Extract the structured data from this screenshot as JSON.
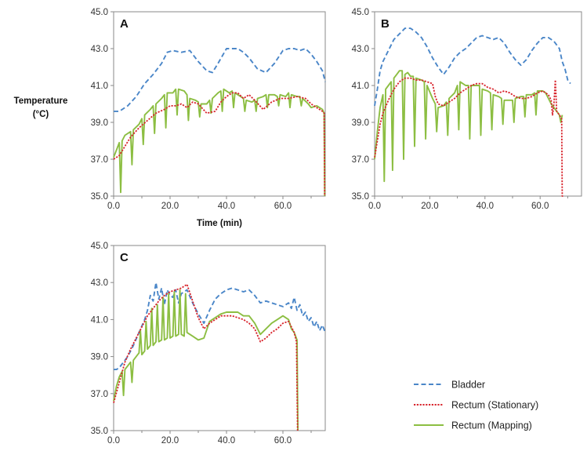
{
  "ylabel_line1": "Temperature",
  "ylabel_line2": "(°C)",
  "colors": {
    "bladder": "#4a86c8",
    "stationary": "#d8262e",
    "mapping": "#8cbe42"
  },
  "legend": [
    {
      "key": "bladder",
      "label": "Bladder",
      "dash": "dashed"
    },
    {
      "key": "stationary",
      "label": "Rectum (Stationary)",
      "dash": "dotted"
    },
    {
      "key": "mapping",
      "label": "Rectum (Mapping)",
      "dash": "solid"
    }
  ],
  "chart_data": [
    {
      "type": "line",
      "panel": "A",
      "xlabel": "Time (min)",
      "xlim": [
        0,
        75
      ],
      "ylim": [
        35,
        45
      ],
      "xticks": [
        "0.0",
        "20.0",
        "40.0",
        "60.0"
      ],
      "yticks": [
        "35.0",
        "37.0",
        "39.0",
        "41.0",
        "43.0",
        "45.0"
      ],
      "series": [
        {
          "name": "Bladder",
          "key": "bladder",
          "x": [
            0,
            2,
            5,
            8,
            11,
            14,
            17,
            19,
            21,
            24,
            27,
            30,
            33,
            35,
            37,
            40,
            42,
            44,
            46,
            48,
            51,
            54,
            57,
            60,
            62,
            64,
            66,
            68,
            70,
            72,
            74,
            75
          ],
          "y": [
            39.6,
            39.6,
            39.9,
            40.4,
            41.1,
            41.6,
            42.2,
            42.8,
            42.9,
            42.8,
            42.9,
            42.3,
            41.8,
            41.7,
            42.2,
            43.0,
            43.0,
            43.0,
            42.8,
            42.5,
            41.9,
            41.7,
            42.2,
            42.9,
            43.0,
            43.0,
            42.9,
            43.0,
            42.7,
            42.3,
            41.8,
            41.2
          ]
        },
        {
          "name": "Rectum (Stationary)",
          "key": "stationary",
          "x": [
            0,
            2,
            4,
            6,
            9,
            12,
            15,
            18,
            20,
            22,
            24,
            26,
            28,
            30,
            33,
            36,
            38,
            40,
            42,
            44,
            46,
            48,
            50,
            53,
            56,
            59,
            62,
            65,
            68,
            70,
            72,
            74,
            74.6,
            74.8
          ],
          "y": [
            37.0,
            37.2,
            37.7,
            38.2,
            38.7,
            39.1,
            39.5,
            39.7,
            39.9,
            39.9,
            40.0,
            39.8,
            40.1,
            40.0,
            39.5,
            39.6,
            40.1,
            40.4,
            40.6,
            40.6,
            40.3,
            40.5,
            40.2,
            39.7,
            40.1,
            40.3,
            40.3,
            40.4,
            40.3,
            40.0,
            39.8,
            39.6,
            39.5,
            35.0
          ]
        },
        {
          "name": "Rectum (Mapping)",
          "key": "mapping",
          "x": [
            0,
            1,
            2,
            2.5,
            3,
            4,
            6,
            6.5,
            7,
            9,
            10,
            10.5,
            11,
            13,
            14,
            14.5,
            15,
            17,
            18,
            18.5,
            19,
            21,
            22,
            22.5,
            23,
            25,
            26,
            26.5,
            27,
            29,
            30,
            30.5,
            31,
            33,
            34,
            34.5,
            35,
            37,
            38,
            38.5,
            39,
            41,
            42,
            42.5,
            43,
            45,
            46,
            46.5,
            47,
            49,
            50,
            50.5,
            51,
            53,
            54,
            54.5,
            55,
            57,
            58,
            58.5,
            59,
            61,
            62,
            62.5,
            63,
            65,
            66,
            66.5,
            67,
            69,
            70,
            72,
            74,
            74.6,
            74.8
          ],
          "y": [
            37.1,
            37.5,
            37.9,
            35.2,
            38.0,
            38.3,
            38.5,
            36.7,
            38.6,
            38.9,
            39.2,
            37.8,
            39.4,
            39.7,
            39.9,
            38.4,
            40.0,
            40.3,
            40.5,
            38.7,
            40.6,
            40.6,
            40.8,
            39.4,
            40.8,
            40.7,
            40.5,
            39.1,
            40.3,
            40.2,
            40.1,
            39.3,
            40.0,
            40.0,
            40.2,
            39.5,
            40.3,
            40.6,
            40.7,
            39.6,
            40.8,
            40.6,
            40.7,
            39.8,
            40.6,
            40.4,
            40.3,
            39.6,
            40.2,
            40.1,
            40.2,
            39.6,
            40.3,
            40.4,
            40.5,
            39.8,
            40.5,
            40.5,
            40.4,
            39.9,
            40.5,
            40.4,
            40.6,
            39.8,
            40.5,
            40.4,
            40.4,
            39.9,
            40.3,
            40.0,
            39.8,
            39.9,
            39.7,
            39.5,
            35.0
          ]
        }
      ]
    },
    {
      "type": "line",
      "panel": "B",
      "xlim": [
        0,
        75
      ],
      "ylim": [
        35,
        45
      ],
      "xticks": [
        "0.0",
        "20.0",
        "40.0",
        "60.0"
      ],
      "yticks": [
        "35.0",
        "37.0",
        "39.0",
        "41.0",
        "43.0",
        "45.0"
      ],
      "series": [
        {
          "name": "Bladder",
          "key": "bladder",
          "x": [
            0,
            1,
            2,
            3,
            5,
            7,
            9,
            11,
            13,
            15,
            17,
            19,
            21,
            23,
            25,
            27,
            29,
            31,
            33,
            35,
            37,
            39,
            41,
            43,
            45,
            47,
            49,
            51,
            53,
            55,
            57,
            59,
            61,
            63,
            65,
            67,
            68,
            69,
            70,
            71
          ],
          "y": [
            39.9,
            40.8,
            41.8,
            42.3,
            42.9,
            43.5,
            43.8,
            44.1,
            44.1,
            43.9,
            43.6,
            43.1,
            42.5,
            42.0,
            41.6,
            42.0,
            42.5,
            42.8,
            43.0,
            43.3,
            43.6,
            43.7,
            43.6,
            43.5,
            43.6,
            43.3,
            42.8,
            42.4,
            42.1,
            42.4,
            42.9,
            43.3,
            43.6,
            43.6,
            43.4,
            43.0,
            42.3,
            41.9,
            41.3,
            41.1
          ]
        },
        {
          "name": "Rectum (Stationary)",
          "key": "stationary",
          "x": [
            0,
            1,
            2,
            3,
            5,
            7,
            9,
            11,
            13,
            15,
            17,
            19,
            21,
            22,
            23,
            25,
            27,
            29,
            31,
            33,
            35,
            37,
            39,
            41,
            43,
            45,
            47,
            49,
            51,
            53,
            55,
            57,
            59,
            61,
            62,
            63,
            64,
            64.5,
            65,
            65.5,
            66,
            67,
            67.8,
            68,
            68.3
          ],
          "y": [
            37.1,
            38.0,
            38.9,
            39.5,
            40.2,
            40.8,
            41.2,
            41.4,
            41.4,
            41.3,
            41.3,
            41.2,
            41.1,
            40.4,
            40.0,
            39.9,
            40.1,
            40.3,
            40.6,
            40.8,
            41.0,
            41.1,
            41.1,
            40.9,
            40.8,
            40.6,
            40.7,
            40.6,
            40.4,
            40.3,
            40.3,
            40.4,
            40.6,
            40.7,
            40.6,
            40.5,
            40.2,
            39.4,
            40.0,
            41.3,
            39.6,
            39.4,
            39.2,
            35.0,
            35.0
          ]
        },
        {
          "name": "Rectum (Mapping)",
          "key": "mapping",
          "x": [
            0,
            1,
            2,
            3,
            3.5,
            4,
            5,
            6,
            6.5,
            7,
            8,
            9,
            10,
            10.5,
            11,
            12,
            13,
            14,
            14.5,
            15,
            17,
            18,
            18.5,
            19,
            21,
            22,
            22.5,
            23,
            25,
            26,
            26.5,
            27,
            29,
            30,
            30.5,
            31,
            33,
            34,
            34.5,
            35,
            37,
            38,
            38.5,
            39,
            41,
            42,
            42.5,
            43,
            45,
            46,
            46.5,
            47,
            49,
            50,
            50.5,
            51,
            53,
            54,
            54.5,
            55,
            57,
            58,
            58.5,
            59,
            61,
            62,
            63,
            64,
            65,
            66,
            67,
            67.5,
            68
          ],
          "y": [
            37.0,
            38.5,
            39.8,
            40.5,
            35.8,
            40.8,
            41.0,
            41.2,
            36.4,
            41.4,
            41.6,
            41.8,
            41.8,
            37.0,
            41.6,
            41.7,
            41.5,
            41.5,
            37.7,
            41.4,
            41.3,
            41.2,
            38.1,
            41.0,
            40.3,
            40.0,
            38.5,
            39.8,
            39.9,
            40.1,
            38.3,
            40.3,
            40.6,
            41.0,
            38.6,
            41.2,
            41.0,
            41.0,
            38.1,
            41.0,
            41.0,
            41.0,
            38.3,
            40.8,
            40.7,
            40.6,
            38.6,
            40.5,
            40.4,
            40.3,
            38.9,
            40.2,
            40.2,
            40.2,
            39.0,
            40.3,
            40.4,
            40.4,
            39.3,
            40.5,
            40.5,
            40.6,
            39.4,
            40.7,
            40.7,
            40.6,
            40.3,
            40.0,
            39.8,
            39.6,
            39.4,
            39.0,
            39.4
          ]
        }
      ]
    },
    {
      "type": "line",
      "panel": "C",
      "xlim": [
        0,
        75
      ],
      "ylim": [
        35,
        45
      ],
      "xticks": [
        "0.0",
        "20.0",
        "40.0",
        "60.0"
      ],
      "yticks": [
        "35.0",
        "37.0",
        "39.0",
        "41.0",
        "43.0",
        "45.0"
      ],
      "series": [
        {
          "name": "Bladder",
          "key": "bladder",
          "x": [
            0,
            1,
            2,
            3,
            5,
            7,
            9,
            11,
            12,
            13,
            14,
            15,
            16,
            17,
            18,
            19,
            20,
            21,
            22,
            23,
            24,
            25,
            26,
            28,
            30,
            32,
            34,
            36,
            38,
            40,
            42,
            44,
            46,
            48,
            50,
            52,
            54,
            56,
            58,
            60,
            62,
            63,
            64,
            65,
            66,
            67,
            68,
            69,
            70,
            71,
            72,
            73,
            74,
            75
          ],
          "y": [
            38.3,
            38.3,
            38.4,
            38.6,
            39.0,
            39.6,
            40.3,
            41.0,
            41.5,
            42.3,
            42.0,
            43.0,
            42.1,
            42.7,
            41.8,
            42.6,
            42.3,
            42.2,
            42.6,
            41.9,
            42.4,
            42.5,
            42.6,
            41.9,
            41.3,
            40.8,
            41.5,
            42.1,
            42.4,
            42.6,
            42.7,
            42.6,
            42.5,
            42.6,
            42.3,
            41.9,
            42.0,
            41.9,
            41.8,
            41.7,
            41.9,
            41.6,
            42.2,
            41.5,
            41.8,
            41.2,
            41.4,
            40.9,
            41.1,
            40.6,
            40.9,
            40.4,
            40.7,
            40.3
          ]
        },
        {
          "name": "Rectum (Stationary)",
          "key": "stationary",
          "x": [
            0,
            2,
            4,
            6,
            8,
            10,
            12,
            14,
            16,
            18,
            20,
            22,
            24,
            26,
            28,
            30,
            32,
            34,
            36,
            38,
            40,
            42,
            44,
            46,
            48,
            50,
            52,
            54,
            56,
            58,
            60,
            62,
            63,
            64,
            64.8,
            65.2
          ],
          "y": [
            36.5,
            37.6,
            38.7,
            39.4,
            40.0,
            40.6,
            41.2,
            41.6,
            42.0,
            42.3,
            42.5,
            42.6,
            42.7,
            42.9,
            42.0,
            41.1,
            40.5,
            40.8,
            41.0,
            41.2,
            41.2,
            41.2,
            41.1,
            41.0,
            40.8,
            40.5,
            39.8,
            40.0,
            40.3,
            40.5,
            40.8,
            40.9,
            40.6,
            40.3,
            39.8,
            35.0
          ]
        },
        {
          "name": "Rectum (Mapping)",
          "key": "mapping",
          "x": [
            0,
            1,
            2,
            3,
            3.5,
            4,
            5,
            6,
            6.5,
            7,
            8,
            9,
            9.5,
            10,
            11,
            11.5,
            12,
            13,
            13.5,
            14,
            15,
            15.5,
            16,
            17,
            17.5,
            18,
            19,
            19.5,
            20,
            21,
            21.5,
            22,
            23,
            23.5,
            24,
            25,
            25.5,
            26,
            28,
            30,
            32,
            34,
            36,
            38,
            40,
            42,
            44,
            46,
            48,
            50,
            52,
            54,
            56,
            58,
            60,
            62,
            63,
            64,
            65,
            65.3
          ],
          "y": [
            36.6,
            37.4,
            37.9,
            38.2,
            36.9,
            38.3,
            38.5,
            38.7,
            37.6,
            38.8,
            39.0,
            39.2,
            40.4,
            39.1,
            39.3,
            40.9,
            39.4,
            39.6,
            41.6,
            39.6,
            39.8,
            41.8,
            39.8,
            39.9,
            42.2,
            39.9,
            40.0,
            42.4,
            40.0,
            40.1,
            42.5,
            40.1,
            40.2,
            42.6,
            40.2,
            40.1,
            42.4,
            40.3,
            40.1,
            39.9,
            40.0,
            40.9,
            41.1,
            41.3,
            41.4,
            41.4,
            41.4,
            41.2,
            41.2,
            40.8,
            40.2,
            40.5,
            40.8,
            41.0,
            41.2,
            41.0,
            40.5,
            40.3,
            39.9,
            35.0
          ]
        }
      ]
    }
  ]
}
